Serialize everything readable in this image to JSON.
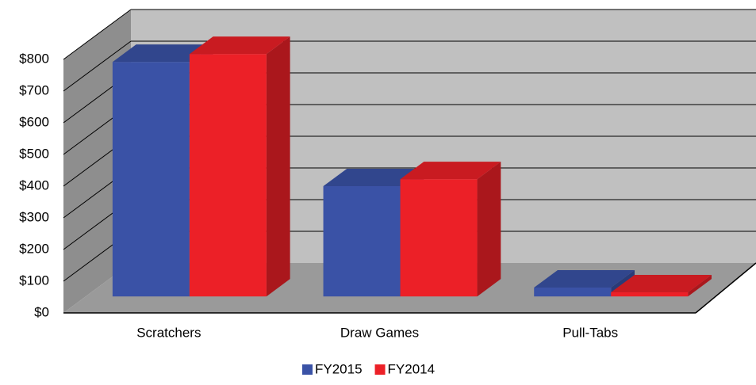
{
  "chart_data": {
    "type": "bar3d",
    "categories": [
      "Scratchers",
      "Draw Games",
      "Pull-Tabs"
    ],
    "series": [
      {
        "name": "FY2015",
        "color": "#3a52a6",
        "values": [
          740,
          348,
          28
        ]
      },
      {
        "name": "FY2014",
        "color": "#ec2027",
        "values": [
          765,
          370,
          13
        ]
      }
    ],
    "ylim": [
      0,
      800
    ],
    "yticks": [
      {
        "value": 0,
        "label": "$0"
      },
      {
        "value": 100,
        "label": "$100"
      },
      {
        "value": 200,
        "label": "$200"
      },
      {
        "value": 300,
        "label": "$300"
      },
      {
        "value": 400,
        "label": "$400"
      },
      {
        "value": 500,
        "label": "$500"
      },
      {
        "value": 600,
        "label": "$600"
      },
      {
        "value": 700,
        "label": "$700"
      },
      {
        "value": 800,
        "label": "$800"
      }
    ],
    "grid": true,
    "legend": "bottom"
  }
}
